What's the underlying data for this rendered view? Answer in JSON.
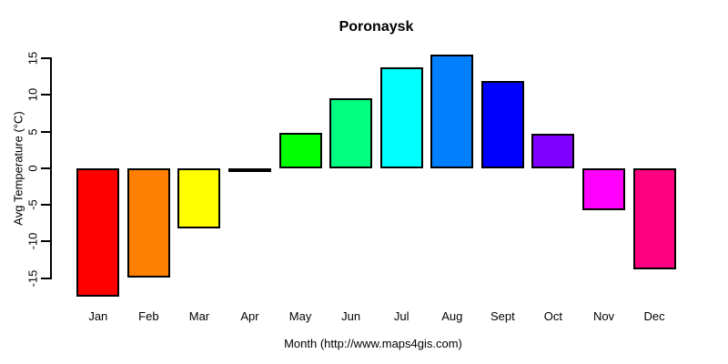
{
  "chart_data": {
    "type": "bar",
    "title": "Poronaysk",
    "xlabel": "Month (http://www.maps4gis.com)",
    "ylabel": "Avg Temperature (°C)",
    "categories": [
      "Jan",
      "Feb",
      "Mar",
      "Apr",
      "May",
      "Jun",
      "Jul",
      "Aug",
      "Sept",
      "Oct",
      "Nov",
      "Dec"
    ],
    "values": [
      -17.5,
      -14.9,
      -8.2,
      -0.2,
      4.8,
      9.5,
      13.8,
      15.5,
      11.9,
      4.7,
      -5.7,
      -13.8
    ],
    "bar_colors": [
      "#FF0000",
      "#FF8000",
      "#FFFF00",
      "#80FF00",
      "#00FF00",
      "#00FF80",
      "#00FFFF",
      "#0080FF",
      "#0000FF",
      "#8000FF",
      "#FF00FF",
      "#FF0080"
    ],
    "bar_border_color": "#000000",
    "yticks": [
      -15,
      -10,
      -5,
      0,
      5,
      10,
      15
    ],
    "ylim": [
      -18.5,
      16
    ],
    "grid": false,
    "legend": null,
    "background_color": "#FFFFFF",
    "axis_color": "#000000"
  }
}
